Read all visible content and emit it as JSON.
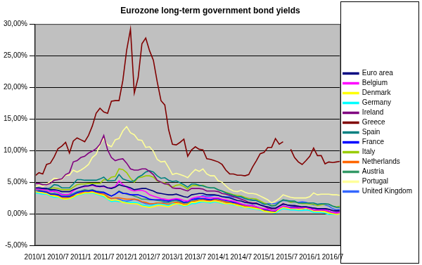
{
  "chart_data": {
    "type": "line",
    "title": "Eurozone long-term government bond yields",
    "categories": [
      "2010/1",
      null,
      null,
      null,
      null,
      null,
      "2010/7",
      null,
      null,
      null,
      null,
      null,
      "2011/1",
      null,
      null,
      null,
      null,
      null,
      "2011/7",
      null,
      null,
      null,
      null,
      null,
      "2012/1",
      null,
      null,
      null,
      null,
      null,
      "2012/7",
      null,
      null,
      null,
      null,
      null,
      "2013/1",
      null,
      null,
      null,
      null,
      null,
      "2013/7",
      null,
      null,
      null,
      null,
      null,
      "2014/1",
      null,
      null,
      null,
      null,
      null,
      "2014/7",
      null,
      null,
      null,
      null,
      null,
      "2015/1",
      null,
      null,
      null,
      null,
      null,
      "2015/7",
      null,
      null,
      null,
      null,
      null,
      "2016/1",
      null,
      null,
      null,
      null,
      null,
      "2016/7",
      null,
      null
    ],
    "series": [
      {
        "name": "Euro area",
        "color": "#000080",
        "values": [
          4.1,
          4.1,
          4.0,
          4.0,
          3.8,
          3.8,
          3.7,
          3.5,
          3.5,
          3.5,
          3.8,
          4.0,
          4.2,
          4.4,
          4.4,
          4.6,
          4.4,
          4.3,
          4.4,
          4.1,
          4.0,
          4.2,
          4.6,
          4.4,
          4.3,
          4.1,
          3.8,
          3.9,
          4.0,
          4.0,
          3.8,
          3.6,
          3.3,
          3.2,
          3.1,
          3.0,
          3.0,
          3.1,
          2.9,
          2.7,
          2.6,
          3.0,
          3.1,
          3.2,
          3.2,
          3.0,
          3.0,
          3.0,
          2.9,
          2.7,
          2.6,
          2.5,
          2.3,
          2.1,
          2.0,
          1.8,
          1.7,
          1.6,
          1.6,
          1.4,
          1.2,
          1.1,
          0.9,
          0.9,
          1.2,
          1.5,
          1.4,
          1.3,
          1.3,
          1.2,
          1.1,
          1.1,
          1.0,
          0.9,
          0.8,
          0.8,
          0.8,
          0.7,
          0.5,
          0.5,
          0.5
        ]
      },
      {
        "name": "Belgium",
        "color": "#ff00ff",
        "values": [
          3.9,
          3.9,
          3.8,
          3.7,
          3.5,
          3.6,
          3.4,
          3.0,
          3.0,
          3.1,
          3.6,
          4.0,
          4.2,
          4.3,
          4.4,
          4.5,
          4.3,
          4.3,
          4.3,
          4.1,
          4.1,
          4.3,
          5.2,
          4.6,
          4.2,
          3.8,
          3.6,
          3.7,
          3.7,
          3.5,
          3.0,
          2.8,
          2.6,
          2.4,
          2.3,
          2.2,
          2.3,
          2.4,
          2.3,
          2.1,
          2.0,
          2.4,
          2.6,
          2.7,
          2.7,
          2.5,
          2.5,
          2.5,
          2.5,
          2.3,
          2.2,
          2.1,
          2.0,
          1.8,
          1.6,
          1.4,
          1.3,
          1.3,
          1.1,
          0.9,
          0.8,
          0.7,
          0.5,
          0.5,
          0.9,
          1.2,
          1.1,
          0.9,
          0.9,
          0.9,
          0.9,
          1.0,
          0.8,
          0.6,
          0.6,
          0.6,
          0.6,
          0.4,
          0.2,
          0.1,
          0.2
        ]
      },
      {
        "name": "Denmark",
        "color": "#ffff00",
        "values": [
          3.5,
          3.4,
          3.3,
          3.2,
          2.9,
          2.8,
          2.7,
          2.4,
          2.3,
          2.4,
          2.6,
          3.0,
          3.1,
          3.3,
          3.3,
          3.4,
          3.2,
          3.0,
          2.9,
          2.4,
          2.1,
          2.2,
          2.1,
          1.8,
          1.7,
          1.6,
          1.6,
          1.5,
          1.2,
          1.1,
          1.0,
          1.1,
          1.3,
          1.3,
          1.2,
          1.1,
          1.4,
          1.6,
          1.5,
          1.3,
          1.4,
          1.8,
          1.8,
          2.0,
          2.0,
          1.9,
          1.9,
          2.0,
          1.9,
          1.7,
          1.6,
          1.6,
          1.5,
          1.3,
          1.2,
          1.0,
          1.0,
          0.9,
          0.8,
          0.7,
          0.4,
          0.3,
          0.2,
          0.2,
          0.7,
          1.0,
          0.9,
          0.8,
          0.8,
          0.7,
          0.8,
          0.9,
          0.7,
          0.4,
          0.4,
          0.4,
          0.3,
          0.1,
          0.0,
          -0.1,
          0.0
        ]
      },
      {
        "name": "Germany",
        "color": "#00ffff",
        "values": [
          3.3,
          3.2,
          3.1,
          3.1,
          2.8,
          2.6,
          2.6,
          2.4,
          2.3,
          2.4,
          2.5,
          2.9,
          3.0,
          3.2,
          3.2,
          3.3,
          3.1,
          2.9,
          2.7,
          2.3,
          1.9,
          2.0,
          1.9,
          1.9,
          1.8,
          1.8,
          1.8,
          1.7,
          1.4,
          1.3,
          1.2,
          1.4,
          1.5,
          1.5,
          1.4,
          1.3,
          1.6,
          1.6,
          1.4,
          1.2,
          1.3,
          1.6,
          1.6,
          1.8,
          1.9,
          1.8,
          1.7,
          1.9,
          1.8,
          1.6,
          1.6,
          1.5,
          1.4,
          1.3,
          1.1,
          1.0,
          0.9,
          0.8,
          0.7,
          0.6,
          0.4,
          0.3,
          0.2,
          0.1,
          0.5,
          0.8,
          0.7,
          0.6,
          0.6,
          0.5,
          0.5,
          0.6,
          0.5,
          0.2,
          0.2,
          0.2,
          0.1,
          -0.1,
          -0.1,
          -0.1,
          0.0
        ]
      },
      {
        "name": "Ireland",
        "color": "#800080",
        "values": [
          4.8,
          4.8,
          4.6,
          4.6,
          4.8,
          5.3,
          5.4,
          5.5,
          6.2,
          6.5,
          8.2,
          8.4,
          8.9,
          9.1,
          9.6,
          9.9,
          10.3,
          11.0,
          12.4,
          10.1,
          8.9,
          8.4,
          8.6,
          8.7,
          8.0,
          7.1,
          6.9,
          6.9,
          7.1,
          7.1,
          6.7,
          6.2,
          5.3,
          5.0,
          4.7,
          4.7,
          4.1,
          4.0,
          4.0,
          3.8,
          3.6,
          4.0,
          4.0,
          4.0,
          3.9,
          3.6,
          3.6,
          3.6,
          3.5,
          3.2,
          3.1,
          2.9,
          2.7,
          2.5,
          2.3,
          2.1,
          1.8,
          1.7,
          1.7,
          1.4,
          1.2,
          0.9,
          0.8,
          0.8,
          1.2,
          1.6,
          1.4,
          1.3,
          1.2,
          1.0,
          1.0,
          1.0,
          0.9,
          0.9,
          0.8,
          0.8,
          0.8,
          0.7,
          0.5,
          0.4,
          0.4
        ]
      },
      {
        "name": "Greece",
        "color": "#800000",
        "values": [
          6.0,
          6.5,
          6.3,
          7.8,
          8.0,
          9.0,
          10.3,
          10.7,
          11.3,
          9.6,
          11.5,
          12.0,
          11.7,
          11.4,
          12.4,
          13.9,
          15.9,
          16.7,
          16.1,
          15.9,
          17.8,
          17.9,
          17.9,
          21.1,
          25.9,
          29.2,
          19.1,
          21.5,
          26.9,
          27.8,
          25.8,
          24.3,
          20.9,
          17.9,
          17.2,
          13.3,
          11.0,
          10.9,
          11.3,
          11.8,
          9.1,
          10.1,
          10.6,
          10.2,
          10.1,
          8.7,
          8.6,
          8.4,
          8.2,
          7.8,
          6.9,
          6.3,
          6.3,
          6.1,
          6.1,
          6.0,
          6.2,
          7.4,
          8.4,
          9.5,
          9.7,
          10.5,
          10.5,
          11.9,
          11.0,
          11.4,
          null,
          10.2,
          8.9,
          8.2,
          7.8,
          8.4,
          9.1,
          10.4,
          9.2,
          9.2,
          7.9,
          8.2,
          8.1,
          8.2,
          8.3
        ]
      },
      {
        "name": "Spain",
        "color": "#008080",
        "values": [
          4.0,
          3.9,
          3.9,
          3.9,
          4.1,
          4.6,
          4.5,
          4.1,
          4.1,
          4.1,
          4.7,
          5.4,
          5.4,
          5.3,
          5.3,
          5.3,
          5.3,
          5.5,
          5.8,
          5.2,
          5.2,
          5.3,
          6.2,
          5.5,
          5.3,
          5.1,
          5.2,
          5.8,
          6.1,
          6.6,
          6.8,
          6.6,
          6.0,
          5.6,
          5.7,
          5.3,
          5.1,
          5.2,
          4.9,
          4.6,
          4.2,
          4.7,
          4.7,
          4.5,
          4.4,
          4.2,
          4.1,
          4.1,
          3.8,
          3.6,
          3.3,
          3.1,
          2.9,
          2.7,
          2.7,
          2.4,
          2.2,
          2.1,
          2.1,
          1.8,
          1.5,
          1.5,
          1.2,
          1.3,
          1.8,
          2.2,
          2.1,
          2.0,
          2.0,
          1.7,
          1.7,
          1.7,
          1.7,
          1.7,
          1.5,
          1.6,
          1.6,
          1.5,
          1.2,
          1.0,
          1.0
        ]
      },
      {
        "name": "France",
        "color": "#0000ff",
        "values": [
          3.5,
          3.6,
          3.5,
          3.4,
          3.1,
          3.1,
          3.0,
          2.7,
          2.7,
          2.7,
          3.0,
          3.3,
          3.5,
          3.6,
          3.6,
          3.7,
          3.5,
          3.4,
          3.4,
          3.1,
          2.8,
          3.1,
          3.5,
          3.2,
          3.2,
          3.0,
          3.0,
          3.0,
          2.8,
          2.6,
          2.3,
          2.2,
          2.2,
          2.2,
          2.1,
          2.0,
          2.2,
          2.3,
          2.1,
          1.8,
          1.9,
          2.3,
          2.3,
          2.4,
          2.4,
          2.3,
          2.2,
          2.4,
          2.4,
          2.2,
          2.1,
          2.0,
          1.8,
          1.7,
          1.5,
          1.4,
          1.3,
          1.3,
          1.1,
          0.9,
          0.7,
          0.6,
          0.5,
          0.4,
          0.8,
          1.2,
          1.1,
          1.0,
          1.0,
          0.9,
          0.9,
          1.0,
          0.9,
          0.6,
          0.6,
          0.6,
          0.6,
          0.4,
          0.2,
          0.2,
          0.2
        ]
      },
      {
        "name": "Italy",
        "color": "#99cc00",
        "values": [
          4.1,
          4.0,
          3.9,
          3.9,
          4.0,
          4.1,
          4.0,
          3.8,
          3.8,
          3.8,
          4.2,
          4.6,
          4.7,
          4.7,
          4.8,
          4.8,
          4.8,
          4.8,
          5.4,
          5.3,
          5.8,
          5.9,
          7.1,
          7.0,
          6.5,
          5.6,
          5.0,
          5.7,
          5.8,
          6.0,
          6.0,
          5.8,
          5.2,
          5.0,
          4.9,
          4.5,
          4.2,
          4.5,
          4.6,
          4.3,
          3.9,
          4.4,
          4.5,
          4.4,
          4.5,
          4.2,
          4.1,
          4.1,
          3.8,
          3.6,
          3.4,
          3.2,
          3.0,
          2.9,
          2.8,
          2.6,
          2.4,
          2.4,
          2.3,
          2.0,
          1.7,
          1.5,
          1.3,
          1.3,
          1.8,
          2.2,
          2.1,
          1.8,
          1.9,
          1.7,
          1.6,
          1.6,
          1.5,
          1.5,
          1.3,
          1.4,
          1.5,
          1.5,
          1.2,
          1.1,
          1.2
        ]
      },
      {
        "name": "Netherlands",
        "color": "#ff6600",
        "values": [
          3.5,
          3.5,
          3.4,
          3.3,
          3.0,
          2.9,
          2.8,
          2.5,
          2.5,
          2.6,
          2.8,
          3.0,
          3.3,
          3.4,
          3.4,
          3.5,
          3.3,
          3.2,
          3.1,
          2.7,
          2.4,
          2.5,
          2.5,
          2.4,
          2.3,
          2.3,
          2.3,
          2.2,
          1.9,
          1.8,
          1.6,
          1.6,
          1.7,
          1.7,
          1.6,
          1.5,
          1.7,
          1.8,
          1.7,
          1.5,
          1.5,
          1.9,
          2.0,
          2.1,
          2.2,
          2.1,
          2.0,
          2.2,
          2.1,
          2.0,
          1.8,
          1.7,
          1.6,
          1.5,
          1.3,
          1.2,
          1.1,
          1.0,
          0.9,
          0.8,
          0.5,
          0.4,
          0.3,
          0.3,
          0.7,
          1.0,
          0.9,
          0.8,
          0.8,
          0.7,
          0.8,
          0.9,
          0.7,
          0.5,
          0.5,
          0.5,
          0.5,
          0.3,
          0.1,
          0.0,
          0.0
        ]
      },
      {
        "name": "Austria",
        "color": "#339966",
        "values": [
          3.8,
          3.8,
          3.6,
          3.5,
          3.2,
          3.2,
          3.1,
          2.8,
          2.8,
          2.9,
          3.1,
          3.4,
          3.6,
          3.8,
          3.7,
          3.8,
          3.6,
          3.5,
          3.4,
          3.0,
          2.8,
          3.1,
          3.6,
          3.3,
          3.1,
          3.0,
          2.8,
          2.6,
          2.3,
          2.3,
          2.2,
          2.2,
          2.1,
          2.0,
          1.9,
          1.8,
          2.0,
          2.1,
          1.9,
          1.7,
          1.7,
          2.0,
          2.1,
          2.2,
          2.3,
          2.2,
          2.2,
          2.3,
          2.2,
          2.0,
          1.9,
          1.8,
          1.7,
          1.6,
          1.4,
          1.2,
          1.1,
          1.0,
          0.9,
          0.8,
          0.6,
          0.5,
          0.4,
          0.3,
          0.8,
          1.1,
          1.0,
          0.9,
          0.9,
          0.8,
          0.8,
          0.9,
          0.7,
          0.5,
          0.5,
          0.5,
          0.5,
          0.3,
          0.1,
          0.1,
          0.1
        ]
      },
      {
        "name": "Portugal",
        "color": "#ffff99",
        "values": [
          4.2,
          4.5,
          4.3,
          4.7,
          5.1,
          5.6,
          5.5,
          5.4,
          6.1,
          6.1,
          6.9,
          6.6,
          6.9,
          7.3,
          7.8,
          8.9,
          9.4,
          10.9,
          11.9,
          10.9,
          10.6,
          11.7,
          11.9,
          13.1,
          13.8,
          12.8,
          12.5,
          11.7,
          11.6,
          10.5,
          10.6,
          9.9,
          8.6,
          8.2,
          8.3,
          7.3,
          6.2,
          6.4,
          6.2,
          6.0,
          5.7,
          6.4,
          7.0,
          6.7,
          7.1,
          6.3,
          6.0,
          6.0,
          5.2,
          5.0,
          4.4,
          3.9,
          3.6,
          3.5,
          3.7,
          3.4,
          3.2,
          3.2,
          3.1,
          2.8,
          2.5,
          2.2,
          1.7,
          2.0,
          2.4,
          3.0,
          2.8,
          2.6,
          2.5,
          2.5,
          2.5,
          2.5,
          2.7,
          3.3,
          3.0,
          3.1,
          3.1,
          3.1,
          3.0,
          3.0,
          2.9
        ]
      },
      {
        "name": "United Kingdom",
        "color": "#3366ff",
        "values": [
          4.0,
          4.1,
          4.0,
          4.0,
          3.7,
          3.5,
          3.4,
          3.1,
          3.0,
          3.0,
          3.2,
          3.5,
          3.6,
          3.7,
          3.6,
          3.5,
          3.3,
          3.3,
          3.2,
          2.6,
          2.4,
          2.5,
          2.3,
          2.1,
          2.0,
          2.1,
          2.3,
          2.1,
          1.8,
          1.6,
          1.5,
          1.5,
          1.7,
          1.7,
          1.8,
          1.8,
          2.0,
          2.1,
          1.9,
          1.7,
          1.9,
          2.2,
          2.4,
          2.6,
          2.9,
          2.7,
          2.8,
          2.9,
          2.9,
          2.7,
          2.7,
          2.7,
          2.6,
          2.7,
          2.6,
          2.4,
          2.4,
          2.2,
          2.1,
          1.8,
          1.5,
          1.6,
          1.6,
          1.6,
          1.9,
          2.1,
          2.0,
          1.8,
          1.8,
          1.8,
          1.9,
          1.8,
          1.6,
          1.4,
          1.4,
          1.5,
          1.4,
          1.2,
          0.8,
          0.6,
          0.7
        ]
      }
    ],
    "ylim": [
      -5,
      30
    ],
    "yticks": [
      {
        "value": -5,
        "label": "-5,00%"
      },
      {
        "value": 0,
        "label": "0,00%"
      },
      {
        "value": 5,
        "label": "5,00%"
      },
      {
        "value": 10,
        "label": "10,00%"
      },
      {
        "value": 15,
        "label": "15,00%"
      },
      {
        "value": 20,
        "label": "20,00%"
      },
      {
        "value": 25,
        "label": "25,00%"
      },
      {
        "value": 30,
        "label": "30,00%"
      }
    ],
    "grid": true,
    "legend": "right"
  }
}
